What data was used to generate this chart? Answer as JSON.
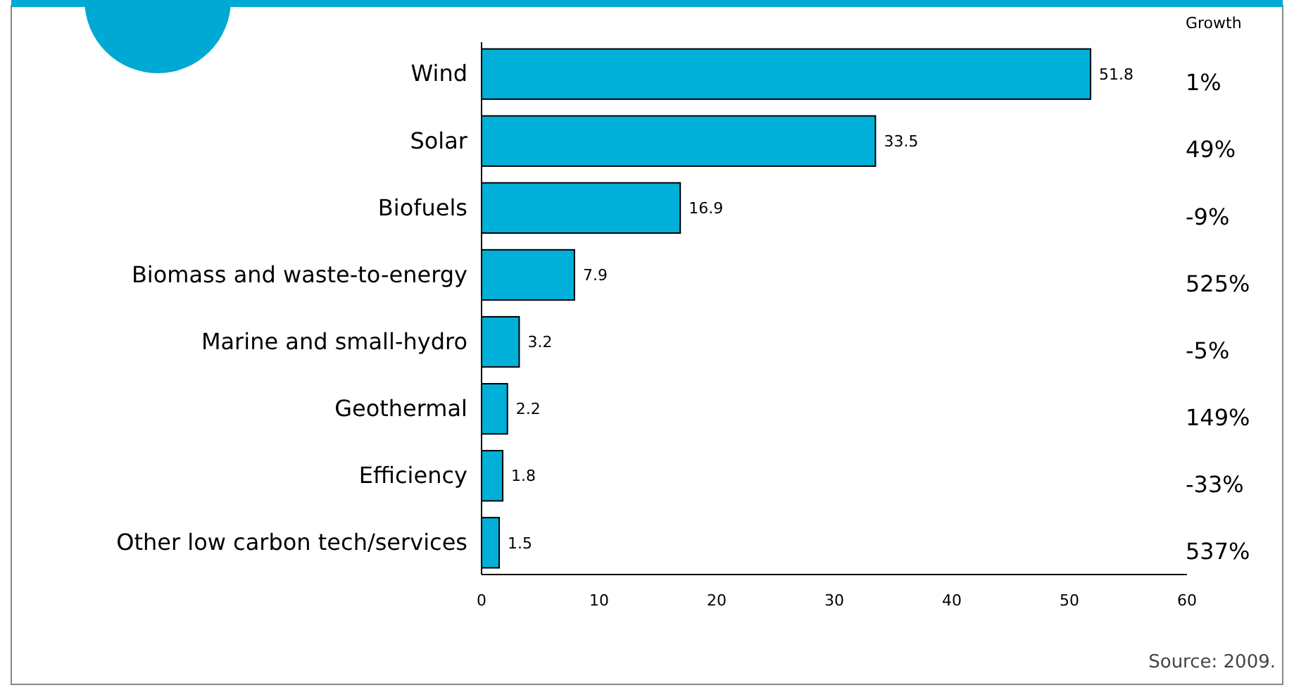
{
  "chart_data": {
    "type": "bar",
    "orientation": "horizontal",
    "categories": [
      "Wind",
      "Solar",
      "Biofuels",
      "Biomass and waste-to-energy",
      "Marine and small-hydro",
      "Geothermal",
      "Efficiency",
      "Other low carbon tech/services"
    ],
    "values": [
      51.8,
      33.5,
      16.9,
      7.9,
      3.2,
      2.2,
      1.8,
      1.5
    ],
    "color": "#00b0d8",
    "data_labels": true,
    "xlim": [
      0,
      60
    ],
    "xticks": [
      0,
      10,
      20,
      30,
      40,
      50,
      60
    ],
    "grid": false,
    "annotations": [
      "Growth",
      "1%",
      "49%",
      "-9%",
      "525%",
      "-5%",
      "149%",
      "-33%",
      "537%",
      "Source: 2009."
    ]
  }
}
